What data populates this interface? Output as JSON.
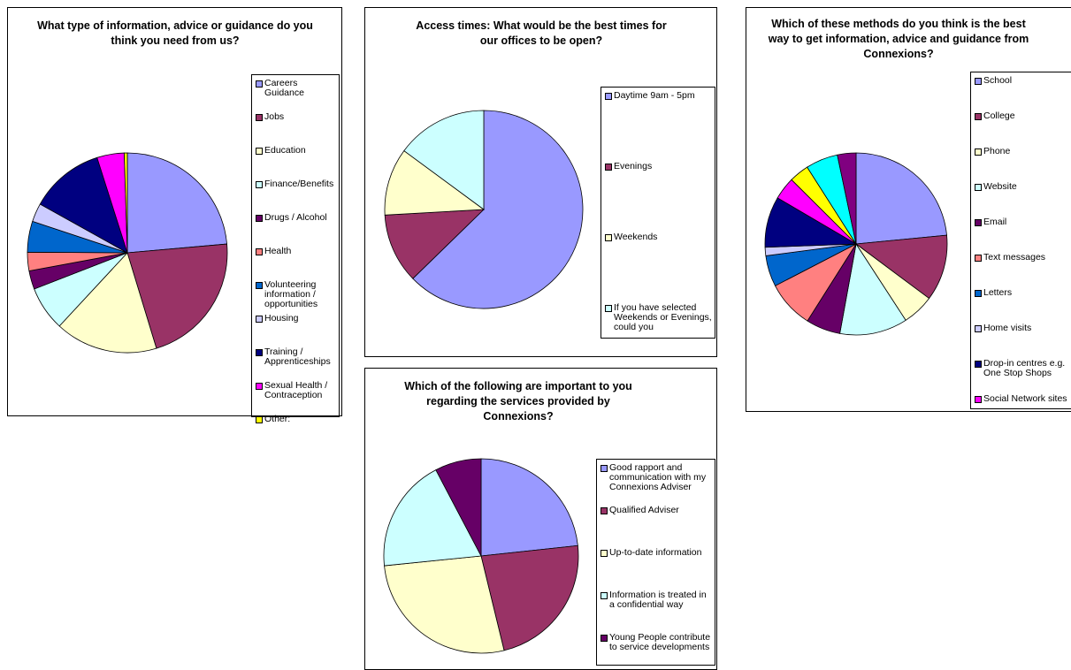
{
  "chart_data": [
    {
      "type": "pie",
      "title": "What type of information, advice or guidance do you think you need from us?",
      "categories": [
        "Careers Guidance",
        "Jobs",
        "Education",
        "Finance/Benefits",
        "Drugs / Alcohol",
        "Health",
        "Volunteering information / opportunities",
        "Housing",
        "Training / Apprenticeships",
        "Sexual Health / Contraception",
        "Other:"
      ],
      "values": [
        23.6,
        21.7,
        16.6,
        7.2,
        3,
        3,
        5,
        3,
        12,
        4.4,
        0.5
      ],
      "colors": [
        "#9999ff",
        "#993366",
        "#ffffcc",
        "#ccffff",
        "#660066",
        "#ff8080",
        "#0066cc",
        "#ccccff",
        "#000080",
        "#ff00ff",
        "#ffff00"
      ]
    },
    {
      "type": "pie",
      "title": "Access times: What would be the best times for our offices to be open?",
      "categories": [
        "Daytime 9am - 5pm",
        "Evenings",
        "Weekends",
        "If you have selected Weekends or Evenings, could you"
      ],
      "values": [
        62.7,
        11.4,
        11,
        14.9
      ],
      "colors": [
        "#9999ff",
        "#993366",
        "#ffffcc",
        "#ccffff"
      ]
    },
    {
      "type": "pie",
      "title": "Which of the following are important to you regarding the services provided by Connexions?",
      "categories": [
        "Good rapport and communication with my Connexions Adviser",
        "Qualified Adviser",
        "Up-to-date information",
        "Information is treated in a confidential way",
        "Young People contribute to service developments"
      ],
      "values": [
        23.3,
        22.9,
        27.2,
        18.9,
        7.7
      ],
      "colors": [
        "#9999ff",
        "#993366",
        "#ffffcc",
        "#ccffff",
        "#660066"
      ]
    },
    {
      "type": "pie",
      "title": "Which of these methods do you think is the best way to get information, advice and guidance from Connexions?",
      "categories": [
        "School",
        "College",
        "Phone",
        "Website",
        "Email",
        "Text messages",
        "Letters",
        "Home visits",
        "Drop-in centres e.g. One Stop Shops",
        "Social Network sites",
        null,
        null,
        null
      ],
      "values": [
        23.4,
        11.7,
        5.6,
        12,
        6.1,
        8.4,
        5.5,
        1.5,
        9,
        4,
        3.5,
        5.7,
        3.3
      ],
      "colors": [
        "#9999ff",
        "#993366",
        "#ffffcc",
        "#ccffff",
        "#660066",
        "#ff8080",
        "#0066cc",
        "#ccccff",
        "#000080",
        "#ff00ff",
        "#ffff00",
        "#00ffff",
        "#800080"
      ]
    }
  ]
}
